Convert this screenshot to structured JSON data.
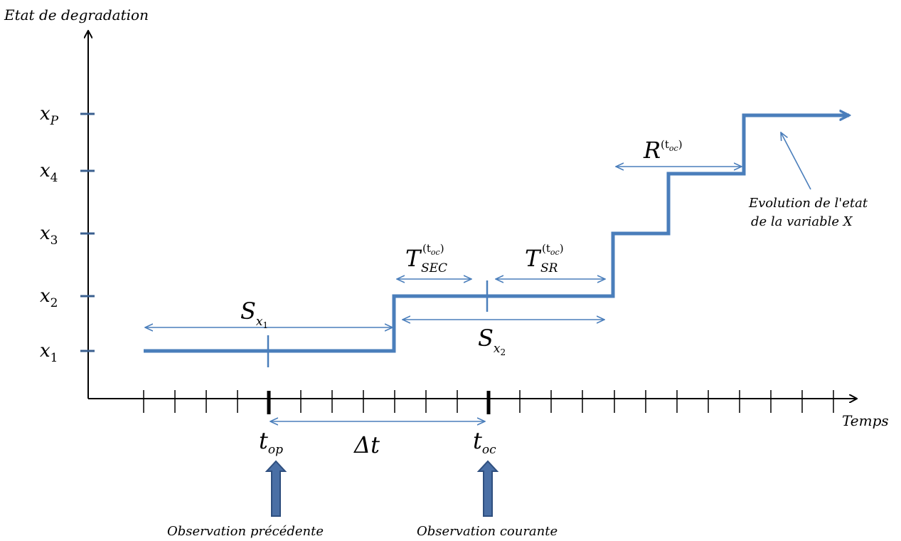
{
  "axes": {
    "y_title": "Etat de degradation",
    "x_title": "Temps"
  },
  "y_levels": {
    "xp": {
      "base": "x",
      "sub": "P"
    },
    "x4": {
      "base": "x",
      "sub": "4"
    },
    "x3": {
      "base": "x",
      "sub": "3"
    },
    "x2": {
      "base": "x",
      "sub": "2"
    },
    "x1": {
      "base": "x",
      "sub": "1"
    }
  },
  "labels": {
    "s_x1": {
      "base": "S",
      "sub": "x",
      "subsub": "1"
    },
    "s_x2": {
      "base": "S",
      "sub": "x",
      "subsub": "2"
    },
    "t_sec": {
      "base": "T",
      "sup": "(t",
      "supsub": "oc",
      "sup_close": ")",
      "sub": "SEC"
    },
    "t_sr": {
      "base": "T",
      "sup": "(t",
      "supsub": "oc",
      "sup_close": ")",
      "sub": "SR"
    },
    "r": {
      "base": "R",
      "sup": "(t",
      "supsub": "oc",
      "sup_close": ")"
    },
    "t_op": {
      "base": "t",
      "sub": "op"
    },
    "t_oc": {
      "base": "t",
      "sub": "oc"
    },
    "delta_t": "Δt"
  },
  "annotations": {
    "evolution_line1": "Evolution de l'etat",
    "evolution_line2": "de la variable X",
    "obs_prev": "Observation précédente",
    "obs_curr": "Observation courante"
  },
  "colors": {
    "accent": "#4a7ebb",
    "arrow_fill": "#4a6fa5",
    "arrow_stroke": "#2f4f7f",
    "axis": "#000000"
  }
}
